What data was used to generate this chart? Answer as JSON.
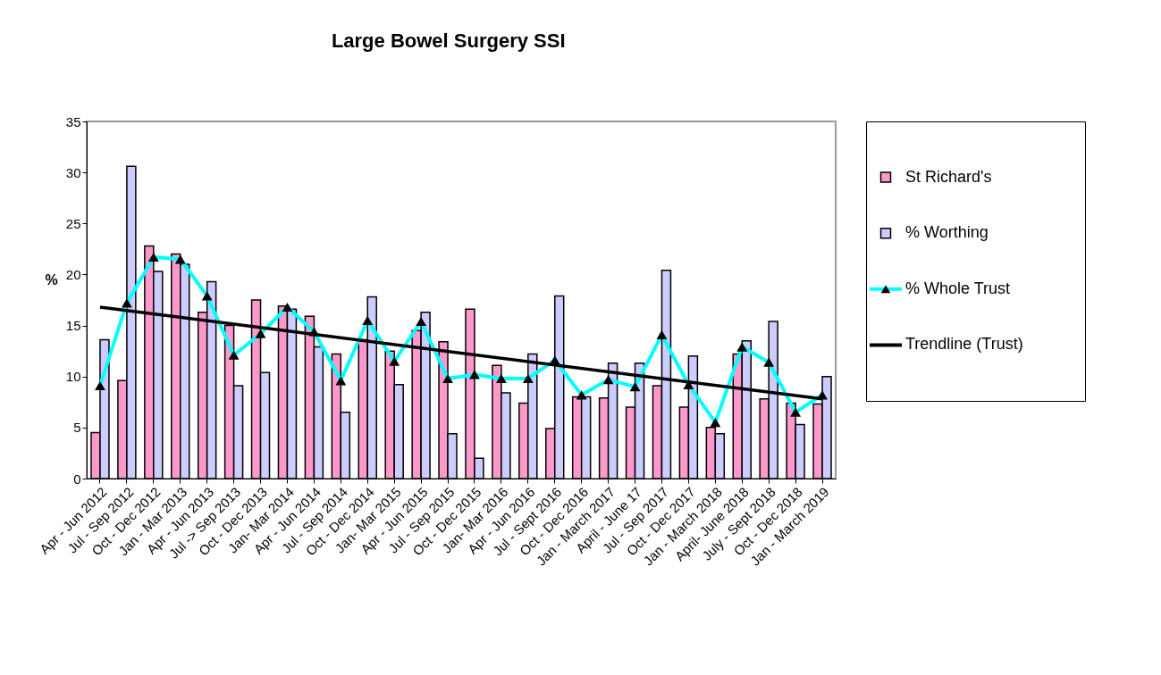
{
  "chart_data": {
    "type": "bar",
    "title": "Large Bowel Surgery SSI",
    "ylabel": "%",
    "categories": [
      "Apr - Jun 2012",
      "Jul - Sep 2012",
      "Oct - Dec 2012",
      "Jan - Mar 2013",
      "Apr - Jun 2013",
      "Jul -> Sep 2013",
      "Oct - Dec 2013",
      "Jan- Mar 2014",
      "Apr - Jun 2014",
      "Jul - Sep 2014",
      "Oct - Dec 2014",
      "Jan- Mar 2015",
      "Apr - Jun 2015",
      "Jul - Sep 2015",
      "Oct - Dec 2015",
      "Jan- Mar 2016",
      "Apr - Jun 2016",
      "Jul - Sept 2016",
      "Oct - Dec 2016",
      "Jan - March 2017",
      "April - June 17",
      "Jul - Sep 2017",
      "Oct - Dec 2017",
      "Jan - March 2018",
      "April- June 2018",
      "July - Sept 2018",
      "Oct - Dec 2018",
      "Jan - March 2019"
    ],
    "series": [
      {
        "name": "St Richard's",
        "color": "#ff99cc",
        "values": [
          4.5,
          9.6,
          22.8,
          22.0,
          16.3,
          15.0,
          17.5,
          16.9,
          15.9,
          12.2,
          13.6,
          12.5,
          14.5,
          13.4,
          16.6,
          11.1,
          7.4,
          4.9,
          8.0,
          7.9,
          7.0,
          9.1,
          7.0,
          5.0,
          12.2,
          7.8,
          7.4,
          7.3
        ]
      },
      {
        "name": "% Worthing",
        "color": "#ccccff",
        "values": [
          13.6,
          30.6,
          20.3,
          21.0,
          19.3,
          9.1,
          10.4,
          16.6,
          12.9,
          6.5,
          17.8,
          9.2,
          16.3,
          4.4,
          2.0,
          8.4,
          12.2,
          17.9,
          8.0,
          11.3,
          11.3,
          20.4,
          12.0,
          4.4,
          13.5,
          15.4,
          5.3,
          10.0
        ]
      },
      {
        "name": "% Whole Trust",
        "type": "line",
        "color": "#00ffff",
        "marker": "triangle",
        "values": [
          9.1,
          17.2,
          21.7,
          21.5,
          17.9,
          12.1,
          14.2,
          16.8,
          14.4,
          9.6,
          15.5,
          11.5,
          15.4,
          9.8,
          10.2,
          9.8,
          9.8,
          11.6,
          8.2,
          9.7,
          9.0,
          14.1,
          9.2,
          5.5,
          12.9,
          11.4,
          6.5,
          8.2
        ]
      },
      {
        "name": "Trendline (Trust)",
        "type": "line",
        "color": "#000000",
        "x": [
          "Apr - Jun 2012",
          "Jan - March 2019"
        ],
        "values": [
          16.8,
          7.8
        ]
      }
    ],
    "ylim": [
      0,
      35
    ],
    "yticks": [
      0,
      5,
      10,
      15,
      20,
      25,
      30,
      35
    ],
    "grid": false,
    "legend": "right"
  }
}
